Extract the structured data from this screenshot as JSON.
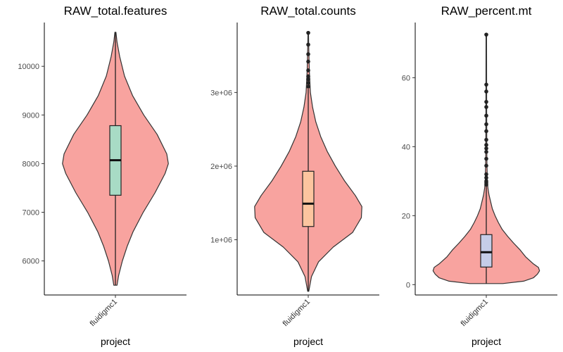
{
  "chart_data": [
    {
      "type": "violin",
      "title": "RAW_total.features",
      "xlabel": "project",
      "ylabel": "",
      "categories": [
        "fluidigmc1"
      ],
      "ylim": [
        5300,
        10900
      ],
      "yticks": [
        6000,
        7000,
        8000,
        9000,
        10000
      ],
      "ytick_labels": [
        "6000",
        "7000",
        "8000",
        "9000",
        "10000"
      ],
      "violin_fill": "#f8a39f",
      "box_fill": "#a8dbc5",
      "box": {
        "q1": 7350,
        "median": 8070,
        "q3": 8780,
        "whisker_low": 5500,
        "whisker_high": 10700
      },
      "outliers": [],
      "density": [
        [
          5500,
          0.03
        ],
        [
          5700,
          0.06
        ],
        [
          6000,
          0.13
        ],
        [
          6300,
          0.22
        ],
        [
          6600,
          0.33
        ],
        [
          7000,
          0.52
        ],
        [
          7400,
          0.74
        ],
        [
          7800,
          0.93
        ],
        [
          8000,
          0.99
        ],
        [
          8200,
          0.96
        ],
        [
          8600,
          0.78
        ],
        [
          9000,
          0.53
        ],
        [
          9400,
          0.32
        ],
        [
          9800,
          0.17
        ],
        [
          10200,
          0.08
        ],
        [
          10500,
          0.03
        ],
        [
          10700,
          0.01
        ]
      ]
    },
    {
      "type": "violin",
      "title": "RAW_total.counts",
      "xlabel": "project",
      "ylabel": "",
      "categories": [
        "fluidigmc1"
      ],
      "ylim": [
        250000,
        3950000
      ],
      "yticks": [
        1000000,
        2000000,
        3000000
      ],
      "ytick_labels": [
        "1e+06",
        "2e+06",
        "3e+06"
      ],
      "violin_fill": "#f8a39f",
      "box_fill": "#fcc59f",
      "box": {
        "q1": 1180000,
        "median": 1490000,
        "q3": 1930000,
        "whisker_low": 300000,
        "whisker_high": 3050000
      },
      "outliers": [
        3080000,
        3130000,
        3180000,
        3220000,
        3300000,
        3420000,
        3520000,
        3650000,
        3810000
      ],
      "density": [
        [
          300000,
          0.01
        ],
        [
          500000,
          0.06
        ],
        [
          700000,
          0.19
        ],
        [
          900000,
          0.46
        ],
        [
          1100000,
          0.82
        ],
        [
          1300000,
          0.98
        ],
        [
          1450000,
          0.99
        ],
        [
          1600000,
          0.87
        ],
        [
          1800000,
          0.67
        ],
        [
          2000000,
          0.5
        ],
        [
          2200000,
          0.35
        ],
        [
          2400000,
          0.23
        ],
        [
          2600000,
          0.14
        ],
        [
          2800000,
          0.08
        ],
        [
          3000000,
          0.04
        ],
        [
          3300000,
          0.02
        ],
        [
          3600000,
          0.01
        ],
        [
          3810000,
          0.005
        ]
      ]
    },
    {
      "type": "violin",
      "title": "RAW_percent.mt",
      "xlabel": "project",
      "ylabel": "",
      "categories": [
        "fluidigmc1"
      ],
      "ylim": [
        -3,
        76
      ],
      "yticks": [
        0,
        20,
        40,
        60
      ],
      "ytick_labels": [
        "0",
        "20",
        "40",
        "60"
      ],
      "violin_fill": "#f8a39f",
      "box_fill": "#c5cde8",
      "box": {
        "q1": 5.1,
        "median": 9.4,
        "q3": 14.5,
        "whisker_low": 0.3,
        "whisker_high": 28.5
      },
      "outliers": [
        29,
        29.5,
        30,
        31,
        32,
        34.5,
        36.5,
        38.5,
        39.5,
        40.5,
        42,
        44.5,
        46.5,
        49,
        51.5,
        53,
        56,
        58,
        72.5
      ],
      "density": [
        [
          0.3,
          0.3
        ],
        [
          1,
          0.68
        ],
        [
          2,
          0.86
        ],
        [
          3,
          0.93
        ],
        [
          4,
          0.97
        ],
        [
          5,
          0.95
        ],
        [
          6,
          0.86
        ],
        [
          8,
          0.72
        ],
        [
          10,
          0.62
        ],
        [
          12,
          0.5
        ],
        [
          14,
          0.39
        ],
        [
          16,
          0.29
        ],
        [
          18,
          0.22
        ],
        [
          20,
          0.16
        ],
        [
          22,
          0.11
        ],
        [
          24,
          0.08
        ],
        [
          26,
          0.05
        ],
        [
          28,
          0.03
        ],
        [
          30,
          0.02
        ],
        [
          35,
          0.012
        ],
        [
          40,
          0.009
        ],
        [
          50,
          0.007
        ],
        [
          60,
          0.006
        ],
        [
          72.5,
          0.005
        ]
      ]
    }
  ]
}
